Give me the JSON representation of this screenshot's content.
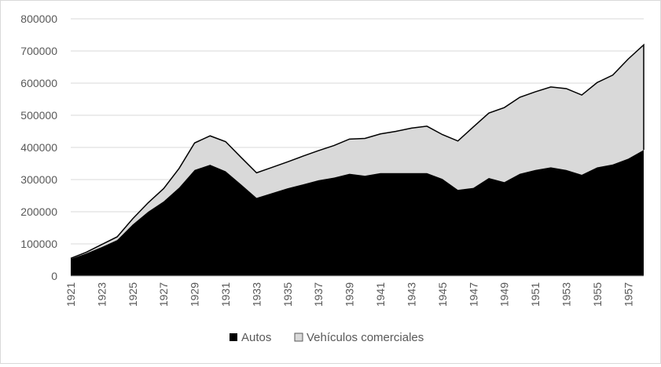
{
  "chart_data": {
    "type": "area",
    "stacked": true,
    "x": [
      1921,
      1922,
      1923,
      1924,
      1925,
      1926,
      1927,
      1928,
      1929,
      1930,
      1931,
      1932,
      1933,
      1934,
      1935,
      1936,
      1937,
      1938,
      1939,
      1940,
      1941,
      1942,
      1943,
      1944,
      1945,
      1946,
      1947,
      1948,
      1949,
      1950,
      1951,
      1952,
      1953,
      1954,
      1955,
      1956,
      1957,
      1958
    ],
    "x_tick_labels": [
      "1921",
      "1923",
      "1925",
      "1927",
      "1929",
      "1931",
      "1933",
      "1935",
      "1937",
      "1939",
      "1941",
      "1943",
      "1945",
      "1947",
      "1949",
      "1951",
      "1953",
      "1955",
      "1957"
    ],
    "y_tick_labels": [
      "0",
      "100000",
      "200000",
      "300000",
      "400000",
      "500000",
      "600000",
      "700000",
      "800000"
    ],
    "ylim": [
      0,
      800000
    ],
    "grid": true,
    "legend_position": "bottom",
    "series": [
      {
        "name": "Autos",
        "color": "#000000",
        "values": [
          53000,
          70000,
          90000,
          112000,
          160000,
          200000,
          232000,
          275000,
          330000,
          346000,
          326000,
          285000,
          243000,
          258000,
          273000,
          285000,
          298000,
          306000,
          318000,
          312000,
          320000,
          320000,
          320000,
          320000,
          302000,
          268000,
          274000,
          305000,
          292000,
          318000,
          330000,
          338000,
          330000,
          315000,
          338000,
          347000,
          365000,
          392000
        ]
      },
      {
        "name": "Vehículos comerciales",
        "color": "#d9d9d9",
        "values": [
          2000,
          4000,
          8000,
          10000,
          18000,
          28000,
          40000,
          60000,
          84000,
          90000,
          92000,
          84000,
          78000,
          80000,
          82000,
          88000,
          92000,
          100000,
          108000,
          116000,
          122000,
          130000,
          140000,
          146000,
          138000,
          152000,
          190000,
          202000,
          232000,
          238000,
          243000,
          250000,
          253000,
          248000,
          264000,
          278000,
          310000,
          327000
        ]
      }
    ],
    "xlabel": "",
    "ylabel": "",
    "title": ""
  }
}
